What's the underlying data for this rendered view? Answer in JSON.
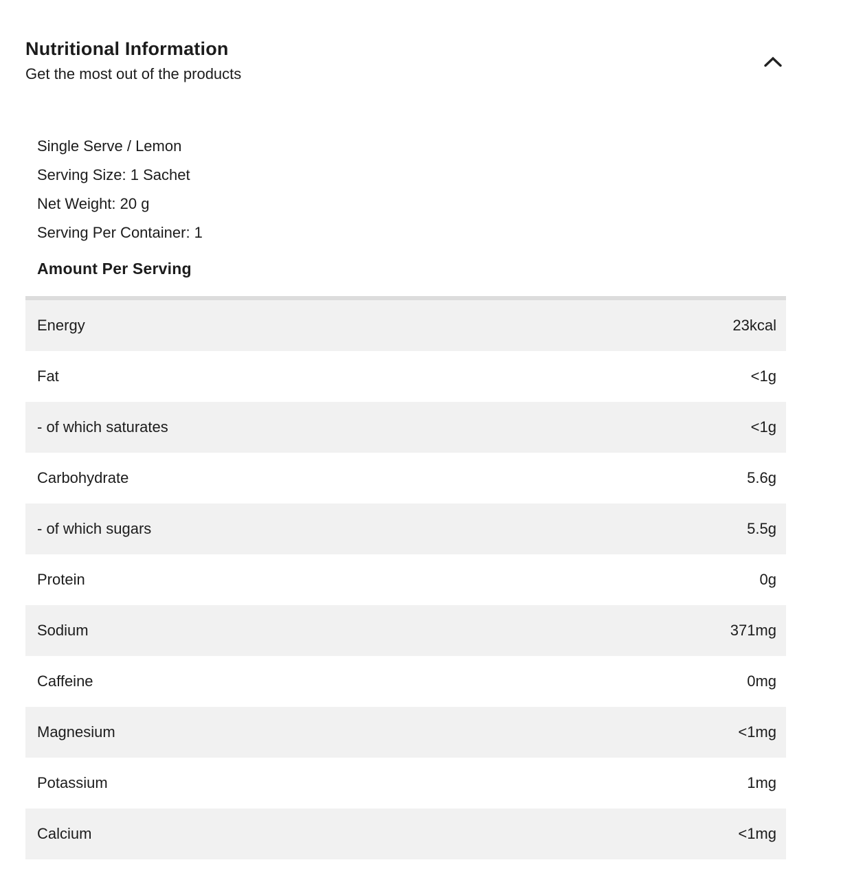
{
  "header": {
    "title": "Nutritional Information",
    "subtitle": "Get the most out of the products",
    "collapse_icon": "chevron-up-icon"
  },
  "product_info": {
    "variant": "Single Serve / Lemon",
    "serving_size": "Serving Size: 1 Sachet",
    "net_weight": "Net Weight: 20 g",
    "servings_per_container": "Serving Per Container: 1"
  },
  "table": {
    "heading": "Amount Per Serving",
    "rows": [
      {
        "label": "Energy",
        "value": "23kcal"
      },
      {
        "label": "Fat",
        "value": "<1g"
      },
      {
        "label": "- of which saturates",
        "value": "<1g"
      },
      {
        "label": "Carbohydrate",
        "value": "5.6g"
      },
      {
        "label": "- of which sugars",
        "value": "5.5g"
      },
      {
        "label": "Protein",
        "value": "0g"
      },
      {
        "label": "Sodium",
        "value": "371mg"
      },
      {
        "label": "Caffeine",
        "value": "0mg"
      },
      {
        "label": "Magnesium",
        "value": "<1mg"
      },
      {
        "label": "Potassium",
        "value": "1mg"
      },
      {
        "label": "Calcium",
        "value": "<1mg"
      }
    ]
  },
  "colors": {
    "text": "#1c1c1c",
    "row_alt_bg": "#f1f1f1",
    "table_top_border": "#dcdcdc",
    "background": "#ffffff"
  }
}
